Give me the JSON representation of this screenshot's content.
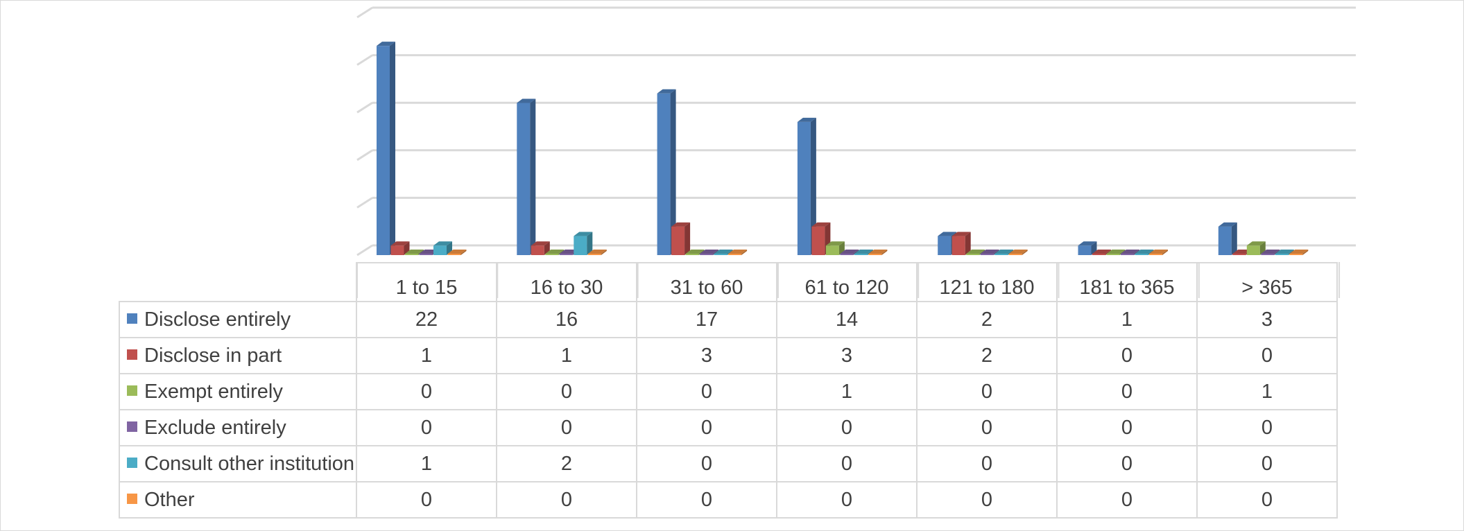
{
  "chart_data": {
    "type": "bar",
    "categories": [
      "1 to 15",
      "16 to 30",
      "31 to 60",
      "61 to 120",
      "121 to 180",
      "181 to 365",
      "> 365"
    ],
    "series": [
      {
        "name": "Disclose entirely",
        "color": "#4f81bd",
        "values": [
          22,
          16,
          17,
          14,
          2,
          1,
          3
        ]
      },
      {
        "name": "Disclose in part",
        "color": "#c0504d",
        "values": [
          1,
          1,
          3,
          3,
          2,
          0,
          0
        ]
      },
      {
        "name": "Exempt entirely",
        "color": "#9bbb59",
        "values": [
          0,
          0,
          0,
          1,
          0,
          0,
          1
        ]
      },
      {
        "name": "Exclude entirely",
        "color": "#8064a2",
        "values": [
          0,
          0,
          0,
          0,
          0,
          0,
          0
        ]
      },
      {
        "name": "Consult other institution",
        "color": "#4bacc6",
        "values": [
          1,
          2,
          0,
          0,
          0,
          0,
          0
        ]
      },
      {
        "name": "Other",
        "color": "#f79646",
        "values": [
          0,
          0,
          0,
          0,
          0,
          0,
          0
        ]
      }
    ],
    "ylim": [
      0,
      25
    ],
    "grid": true,
    "legend": "data-table"
  }
}
